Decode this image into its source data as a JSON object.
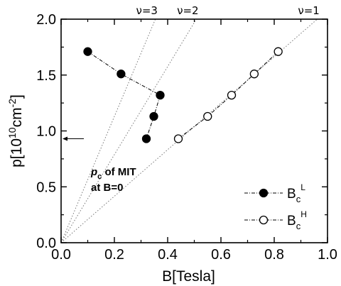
{
  "chart_data": {
    "type": "scatter",
    "xlabel": "B[Tesla]",
    "ylabel_parts": [
      "p[10",
      "10",
      "cm",
      "-2",
      "]"
    ],
    "xlim": [
      0.0,
      1.0
    ],
    "ylim": [
      0.0,
      2.0
    ],
    "x_ticks": [
      0.0,
      0.2,
      0.4,
      0.6,
      0.8,
      1.0
    ],
    "x_tick_labels": [
      "0.0",
      "0.2",
      "0.4",
      "0.6",
      "0.8",
      "1.0"
    ],
    "y_ticks": [
      0.0,
      0.5,
      1.0,
      1.5,
      2.0
    ],
    "y_tick_labels": [
      "0.0",
      "0.5",
      "1.0",
      "1.5",
      "2.0"
    ],
    "grid": false,
    "series": [
      {
        "label_main": "B",
        "label_sub": "c",
        "label_sup": "L",
        "marker": "filled-circle",
        "color": "#000000",
        "x": [
          0.1,
          0.225,
          0.372,
          0.348,
          0.32
        ],
        "y": [
          1.71,
          1.51,
          1.32,
          1.13,
          0.93
        ]
      },
      {
        "label_main": "B",
        "label_sub": "c",
        "label_sup": "H",
        "marker": "open-circle",
        "color": "#000000",
        "x": [
          0.44,
          0.55,
          0.64,
          0.725,
          0.815
        ],
        "y": [
          0.93,
          1.13,
          1.32,
          1.51,
          1.71
        ]
      }
    ],
    "reference_lines": [
      {
        "label": "ν=3",
        "slope": 5.65
      },
      {
        "label": "ν=2",
        "slope": 3.94
      },
      {
        "label": "ν=1",
        "slope": 2.08
      }
    ],
    "annotation": {
      "line1_main": "p",
      "line1_sub": "c",
      "line1_rest": " of MIT",
      "line2": "at B=0",
      "arrow_y": 0.93
    },
    "legend_position": "lower-right"
  }
}
